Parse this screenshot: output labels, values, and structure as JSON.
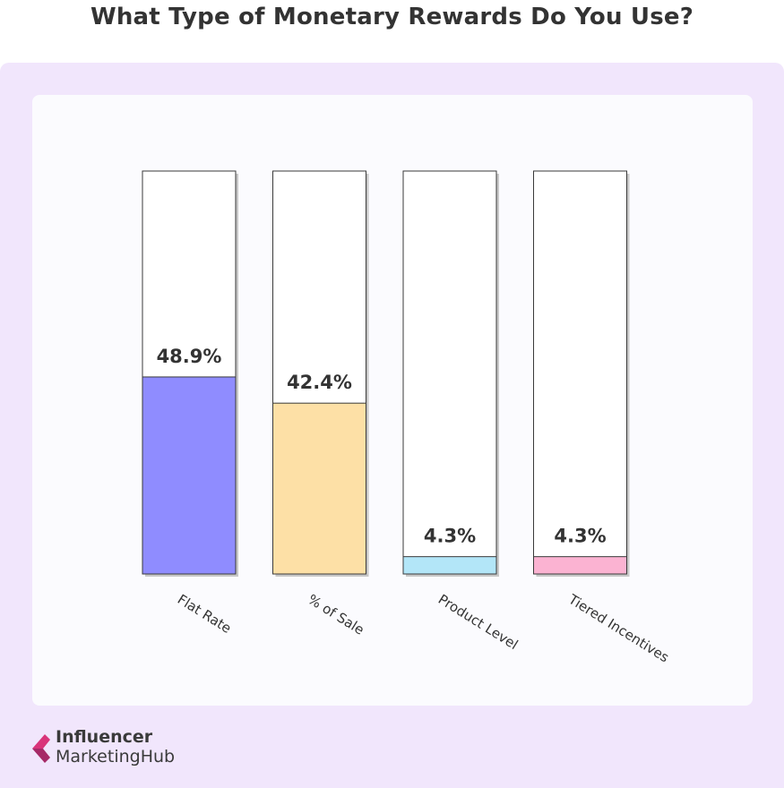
{
  "title": "What Type of Monetary Rewards Do You Use?",
  "brand": {
    "line1": "Influencer",
    "line2": "MarketingHub"
  },
  "colors": {
    "page_bg": "#f1e6fc",
    "card_bg": "#fbfbfe",
    "bar_outline": "#3a3a3a",
    "shadow": "#c8c8c8"
  },
  "chart_data": {
    "type": "bar",
    "title": "What Type of Monetary Rewards Do You Use?",
    "categories": [
      "Flat Rate",
      "% of Sale",
      "Product Level",
      "Tiered Incentives"
    ],
    "values": [
      48.9,
      42.4,
      4.3,
      4.3
    ],
    "value_labels": [
      "48.9%",
      "42.4%",
      "4.3%",
      "4.3%"
    ],
    "colors": [
      "#8f8cff",
      "#fde0a6",
      "#b3e6f8",
      "#fbb3d2"
    ],
    "ylim": [
      0,
      100
    ],
    "unit": "%",
    "grid": false,
    "legend": "none",
    "xlabel": "",
    "ylabel": ""
  }
}
